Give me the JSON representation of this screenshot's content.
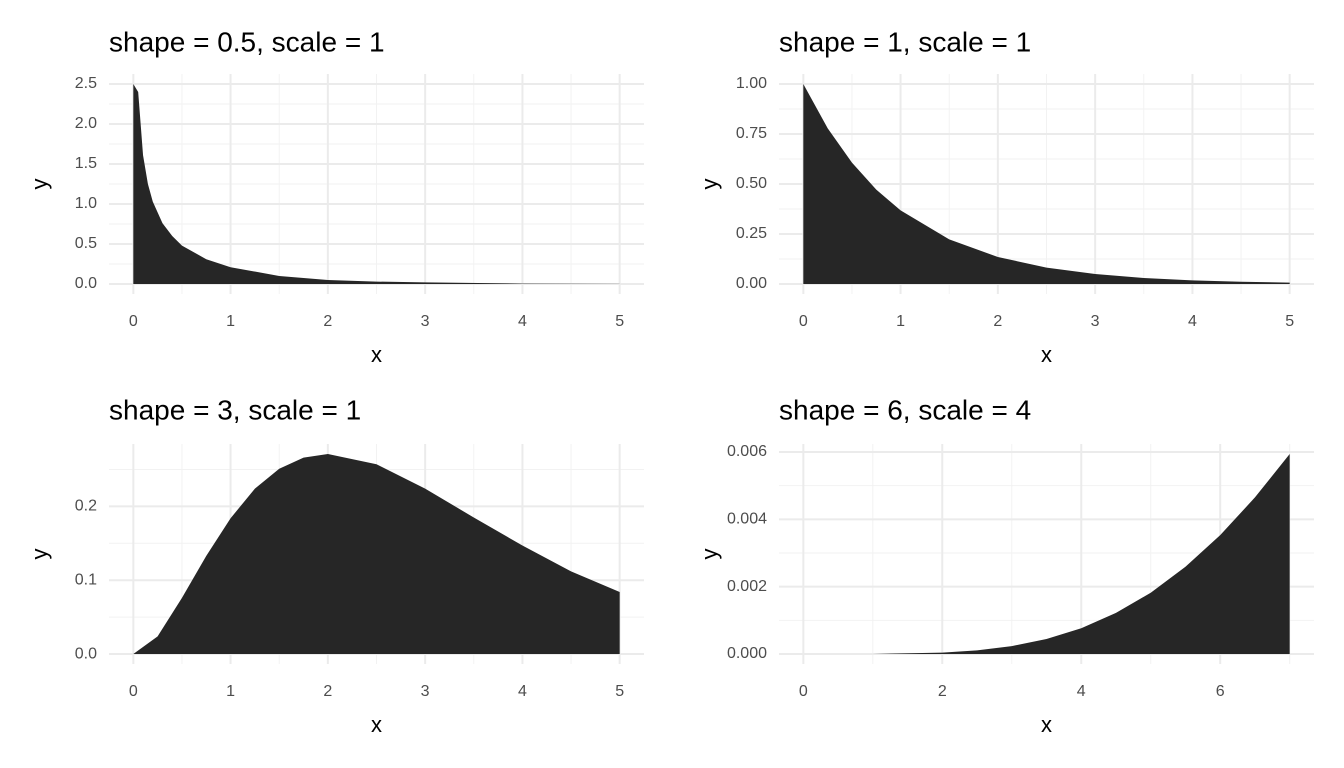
{
  "chart_data": [
    {
      "type": "area",
      "title": "shape = 0.5, scale = 1",
      "x_label": "x",
      "y_label": "y",
      "color": "#262626",
      "grid": true,
      "x": [
        0,
        0.05,
        0.1,
        0.15,
        0.2,
        0.3,
        0.4,
        0.5,
        0.75,
        1,
        1.5,
        2,
        2.5,
        3,
        4,
        5
      ],
      "values": [
        2.5,
        2.4,
        1.61,
        1.25,
        1.03,
        0.76,
        0.6,
        0.48,
        0.31,
        0.21,
        0.1,
        0.05,
        0.03,
        0.02,
        0.005,
        0.002
      ],
      "xlim": [
        -0.25,
        5.25
      ],
      "xticks": [
        0,
        1,
        2,
        3,
        4,
        5
      ],
      "x_minor_ticks": [
        0.5,
        1.5,
        2.5,
        3.5,
        4.5
      ],
      "ylim": [
        -0.125,
        2.625
      ],
      "yticks": [
        {
          "value": 0,
          "label": "0.0"
        },
        0.5,
        {
          "value": 1,
          "label": "1.0"
        },
        1.5,
        {
          "value": 2,
          "label": "2.0"
        },
        2.5
      ],
      "y_minor_ticks": [
        0.25,
        0.75,
        1.25,
        1.75,
        2.25
      ]
    },
    {
      "type": "area",
      "title": "shape = 1, scale = 1",
      "x_label": "x",
      "y_label": "y",
      "color": "#262626",
      "grid": true,
      "x": [
        0,
        0.25,
        0.5,
        0.75,
        1,
        1.5,
        2,
        2.5,
        3,
        3.5,
        4,
        4.5,
        5
      ],
      "values": [
        1,
        0.779,
        0.607,
        0.472,
        0.368,
        0.223,
        0.135,
        0.082,
        0.05,
        0.03,
        0.018,
        0.011,
        0.007
      ],
      "xlim": [
        -0.25,
        5.25
      ],
      "xticks": [
        0,
        1,
        2,
        3,
        4,
        5
      ],
      "x_minor_ticks": [
        0.5,
        1.5,
        2.5,
        3.5,
        4.5
      ],
      "ylim": [
        -0.05,
        1.05
      ],
      "yticks": [
        {
          "value": 0,
          "label": "0.00"
        },
        0.25,
        {
          "value": 0.5,
          "label": "0.50"
        },
        0.75,
        {
          "value": 1,
          "label": "1.00"
        }
      ],
      "y_minor_ticks": [
        0.125,
        0.375,
        0.625,
        0.875
      ]
    },
    {
      "type": "area",
      "title": "shape = 3, scale = 1",
      "x_label": "x",
      "y_label": "y",
      "color": "#262626",
      "grid": true,
      "x": [
        0,
        0.25,
        0.5,
        0.75,
        1,
        1.25,
        1.5,
        1.75,
        2,
        2.5,
        3,
        3.5,
        4,
        4.5,
        5
      ],
      "values": [
        0,
        0.024,
        0.076,
        0.133,
        0.184,
        0.224,
        0.251,
        0.266,
        0.271,
        0.257,
        0.224,
        0.185,
        0.147,
        0.112,
        0.084
      ],
      "xlim": [
        -0.25,
        5.25
      ],
      "xticks": [
        0,
        1,
        2,
        3,
        4,
        5
      ],
      "x_minor_ticks": [
        0.5,
        1.5,
        2.5,
        3.5,
        4.5
      ],
      "ylim": [
        -0.0135,
        0.2845
      ],
      "yticks": [
        {
          "value": 0,
          "label": "0.0"
        },
        0.1,
        0.2
      ],
      "y_minor_ticks": [
        0.05,
        0.15,
        0.25
      ]
    },
    {
      "type": "area",
      "title": "shape = 6, scale = 4",
      "x_label": "x",
      "y_label": "y",
      "color": "#262626",
      "grid": true,
      "x": [
        0,
        1,
        2,
        2.5,
        3,
        3.5,
        4,
        4.5,
        5,
        5.5,
        6,
        6.5,
        7
      ],
      "values": [
        0,
        1.6e-06,
        3.95e-05,
        0.000106,
        0.000234,
        0.000445,
        0.000766,
        0.00122,
        0.00182,
        0.00259,
        0.00353,
        0.00465,
        0.00594
      ],
      "xlim": [
        -0.35,
        7.35
      ],
      "xticks": [
        0,
        2,
        4,
        6
      ],
      "x_minor_ticks": [
        1,
        3,
        5,
        7
      ],
      "ylim": [
        -0.000297,
        0.006237
      ],
      "yticks": [
        {
          "value": 0,
          "label": "0.000"
        },
        0.002,
        0.004,
        0.006
      ],
      "y_minor_ticks": [
        0.001,
        0.003,
        0.005
      ]
    }
  ]
}
